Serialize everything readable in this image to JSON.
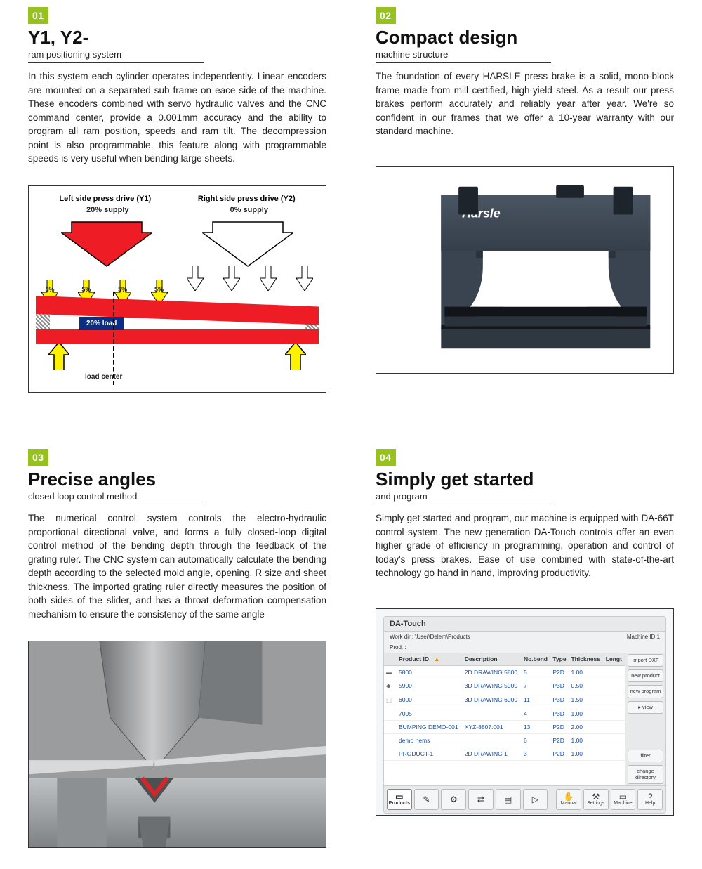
{
  "features": [
    {
      "badge": "01",
      "title": "Y1, Y2-",
      "subtitle": "ram positioning system",
      "desc": "In this system each cylinder operates independently. Linear encoders are mounted on a separated sub frame on eace side of the machine. These encoders combined with servo hydraulic valves and the CNC command center, provide a 0.001mm accuracy and the ability to program all ram position, speeds and ram tilt. The decompression point is also programmable, this feature along with programmable speeds is very useful when bending large sheets."
    },
    {
      "badge": "02",
      "title": "Compact design",
      "subtitle": "machine structure",
      "desc": "The foundation of every HARSLE press brake is a solid, mono-block frame made from mill certified, high-yield steel. As a result our press brakes perform accurately and reliably year after year. We're so confident in our frames that we offer a 10-year warranty with our standard machine."
    },
    {
      "badge": "03",
      "title": "Precise angles",
      "subtitle": "closed loop control method",
      "desc": "The numerical control system controls the electro-hydraulic proportional directional valve, and forms a fully closed-loop digital control method of the bending depth through the feedback of the grating ruler. The CNC system can automatically calculate the bending depth according to the selected mold angle, opening, R size and sheet thickness. The imported grating ruler directly measures the position of both sides of the slider, and has a throat deformation compensation mechanism to ensure the consistency of the same angle"
    },
    {
      "badge": "04",
      "title": "Simply get started",
      "subtitle": "and program",
      "desc": "Simply get started and program, our machine is equipped with DA-66T control system. The new generation DA-Touch controls offer an even higher grade of efficiency in programming, operation and control of today's press brakes. Ease of use combined with state-of-the-art technology go hand in hand, improving productivity."
    }
  ],
  "diagram1": {
    "left_label": "Left side press drive (Y1)",
    "right_label": "Right side press drive (Y2)",
    "left_supply": "20% supply",
    "right_supply": "0% supply",
    "small_pct": "5%",
    "load_label": "20% load",
    "load_center": "load center",
    "colors": {
      "red": "#ee1c25",
      "yellow": "#fff200",
      "blue": "#0a2f82",
      "outline": "#000000"
    }
  },
  "machine": {
    "brand": "Harsle"
  },
  "datouch": {
    "brand": "DA-Touch",
    "workdir": "Work dir : \\User\\Delem\\Products",
    "machine_id": "Machine ID:1",
    "prod": "Prod. :",
    "columns": [
      "Product ID",
      "Description",
      "No.bend",
      "Type",
      "Thickness",
      "Lengt"
    ],
    "rows": [
      [
        "5800",
        "2D DRAWING 5800",
        "5",
        "P2D",
        "1.00",
        ""
      ],
      [
        "5900",
        "3D DRAWING 5900",
        "7",
        "P3D",
        "0.50",
        ""
      ],
      [
        "6000",
        "3D DRAWING 6000",
        "11",
        "P3D",
        "1.50",
        ""
      ],
      [
        "7005",
        "",
        "4",
        "P3D",
        "1.00",
        ""
      ],
      [
        "BUMPING DEMO-001",
        "XYZ-8807.001",
        "13",
        "P2D",
        "2.00",
        ""
      ],
      [
        "demo hems",
        "",
        "6",
        "P2D",
        "1.00",
        ""
      ],
      [
        "PRODUCT-1",
        "2D DRAWING 1",
        "3",
        "P2D",
        "1.00",
        ""
      ]
    ],
    "side_buttons": [
      "import DXF",
      "new product",
      "new program",
      "▸   view",
      "filter",
      "change directory"
    ],
    "footer": [
      {
        "icon": "▭",
        "label": "Products"
      },
      {
        "icon": "✎",
        "label": ""
      },
      {
        "icon": "⚙",
        "label": ""
      },
      {
        "icon": "⇄",
        "label": ""
      },
      {
        "icon": "▤",
        "label": ""
      },
      {
        "icon": "▷",
        "label": ""
      },
      {
        "icon": "✋",
        "label": "Manual"
      },
      {
        "icon": "⚒",
        "label": "Settings"
      },
      {
        "icon": "▭",
        "label": "Machine"
      },
      {
        "icon": "?",
        "label": "Help"
      }
    ]
  }
}
